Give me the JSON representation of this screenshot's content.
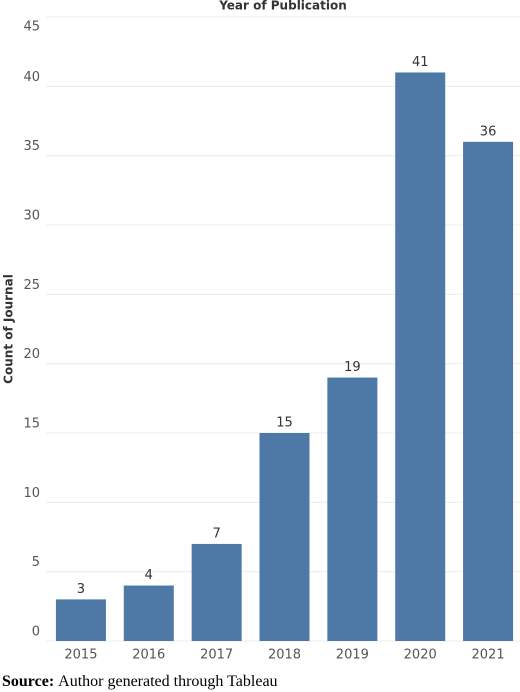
{
  "chart_data": {
    "type": "bar",
    "title": "Year of Publication",
    "y_label": "Count of Journal",
    "categories": [
      "2015",
      "2016",
      "2017",
      "2018",
      "2019",
      "2020",
      "2021"
    ],
    "values": [
      3,
      4,
      7,
      15,
      19,
      41,
      36
    ],
    "color": "#4e78a6",
    "ylim": [
      0,
      45
    ],
    "yticks": [
      0,
      5,
      10,
      15,
      20,
      25,
      30,
      35,
      40,
      45
    ],
    "grid": true
  },
  "source": {
    "label": "Source:",
    "text": "Author generated through Tableau"
  }
}
